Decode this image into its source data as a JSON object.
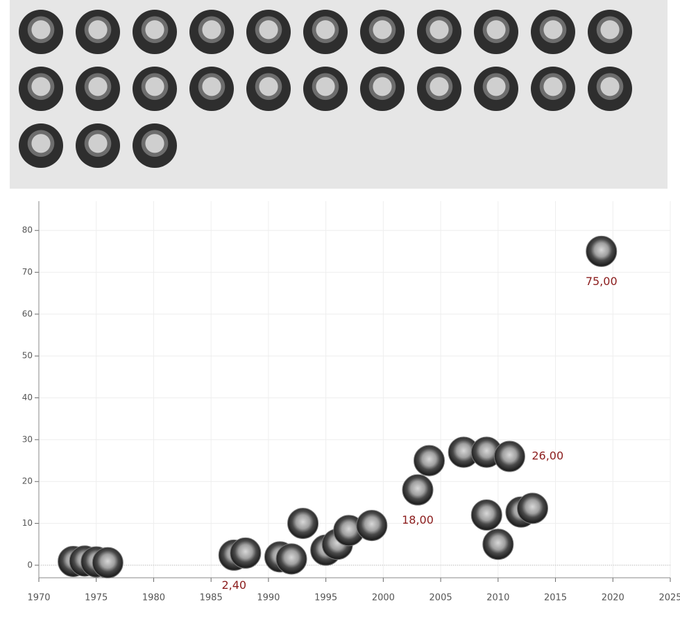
{
  "chart_data": {
    "type": "scatter",
    "x": [
      1973,
      1974,
      1975,
      1976,
      1987,
      1988,
      1991,
      1992,
      1993,
      1995,
      1996,
      1997,
      1999,
      2003,
      2004,
      2007,
      2009,
      2011,
      2009,
      2010,
      2012,
      2013,
      2019
    ],
    "values": [
      0.9,
      1,
      0.8,
      0.6,
      2.4,
      2.9,
      2,
      1.5,
      10,
      3.6,
      5,
      8.3,
      9.5,
      18,
      25,
      27,
      27,
      26,
      12,
      5,
      12.7,
      13.6,
      75
    ],
    "value_labels": [
      null,
      null,
      null,
      null,
      "2,40",
      null,
      null,
      null,
      null,
      null,
      null,
      null,
      null,
      "18,00",
      null,
      null,
      null,
      "26,00",
      null,
      null,
      null,
      null,
      "75,00"
    ],
    "xlim": [
      1970,
      2025
    ],
    "xticks": [
      1970,
      1975,
      1980,
      1985,
      1990,
      1995,
      2000,
      2005,
      2010,
      2015,
      2020,
      2025
    ],
    "ylim": [
      -3,
      87
    ],
    "yticks": [
      0,
      10,
      20,
      30,
      40,
      50,
      60,
      70,
      80
    ],
    "grid": true,
    "color": "#777777"
  }
}
